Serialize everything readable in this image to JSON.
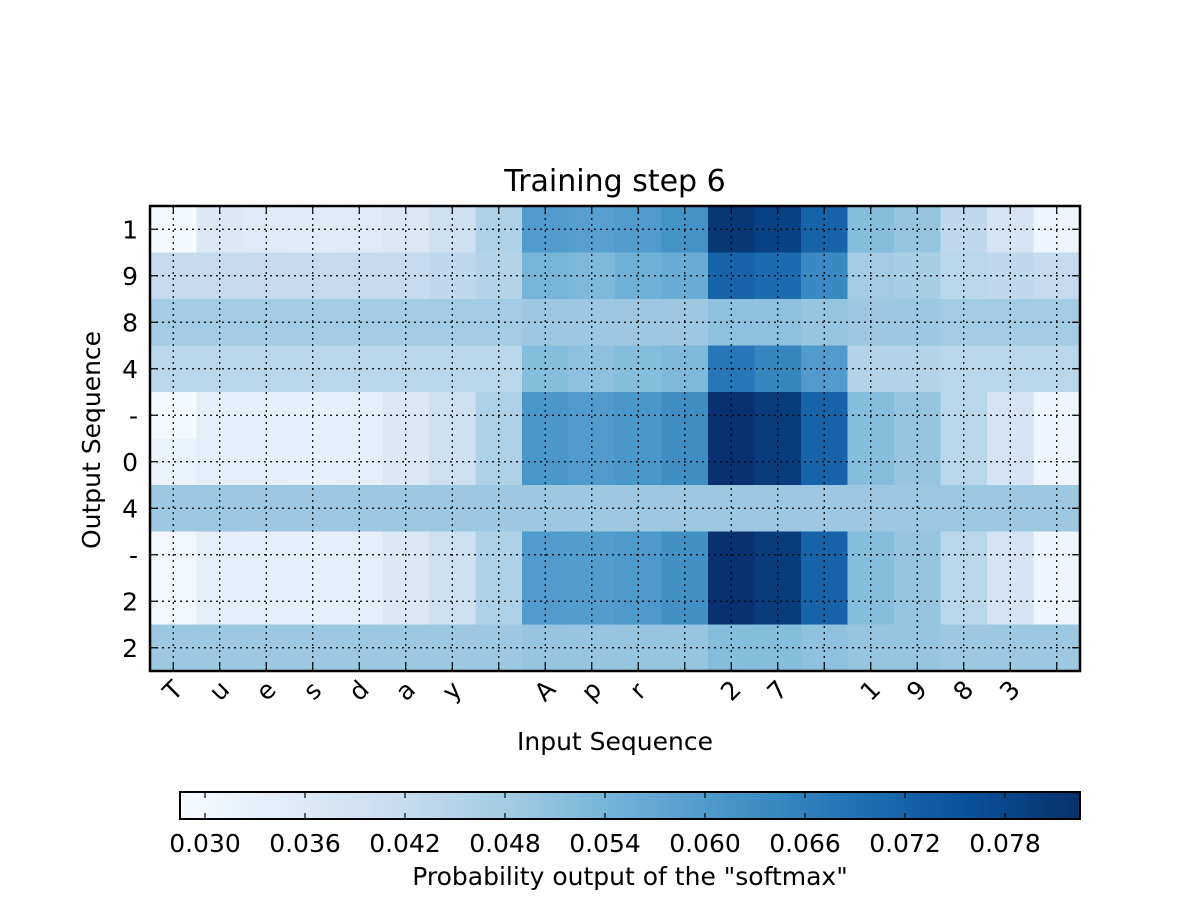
{
  "chart_data": {
    "type": "heatmap",
    "title": "Training step 6",
    "xlabel": "Input Sequence",
    "ylabel": "Output Sequence",
    "x_tick_labels": [
      "T",
      "u",
      "e",
      "s",
      "d",
      "a",
      "y",
      "",
      "A",
      "p",
      "r",
      "",
      "2",
      "7",
      "",
      "1",
      "9",
      "8",
      "3",
      ""
    ],
    "y_tick_labels": [
      "1",
      "9",
      "8",
      "4",
      "-",
      "0",
      "4",
      "-",
      "2",
      "2"
    ],
    "grid": true,
    "colormap": "Blues",
    "colorbar": {
      "label": "Probability output of the \"softmax\"",
      "tick_values": [
        0.03,
        0.036,
        0.042,
        0.048,
        0.054,
        0.06,
        0.066,
        0.072,
        0.078
      ],
      "tick_labels": [
        "0.030",
        "0.036",
        "0.042",
        "0.048",
        "0.054",
        "0.060",
        "0.066",
        "0.072",
        "0.078"
      ],
      "range": [
        0.0285,
        0.0825
      ]
    },
    "column_labels_long": [
      "T",
      "u",
      "e",
      "s",
      "d",
      "a",
      "y",
      " ",
      "A",
      "p",
      "r",
      " ",
      "2",
      "7",
      " ",
      "1",
      "9",
      "8",
      "3",
      " "
    ],
    "values": [
      [
        0.029,
        0.036,
        0.0355,
        0.035,
        0.0355,
        0.0365,
        0.04,
        0.046,
        0.06,
        0.059,
        0.06,
        0.062,
        0.081,
        0.079,
        0.072,
        0.052,
        0.05,
        0.043,
        0.038,
        0.031
      ],
      [
        0.042,
        0.042,
        0.042,
        0.042,
        0.042,
        0.042,
        0.043,
        0.045,
        0.054,
        0.053,
        0.055,
        0.056,
        0.072,
        0.07,
        0.064,
        0.048,
        0.047,
        0.044,
        0.043,
        0.042
      ],
      [
        0.048,
        0.048,
        0.048,
        0.048,
        0.048,
        0.048,
        0.048,
        0.048,
        0.049,
        0.049,
        0.049,
        0.049,
        0.051,
        0.051,
        0.05,
        0.049,
        0.049,
        0.048,
        0.048,
        0.048
      ],
      [
        0.044,
        0.044,
        0.044,
        0.044,
        0.044,
        0.044,
        0.044,
        0.044,
        0.052,
        0.051,
        0.052,
        0.053,
        0.068,
        0.065,
        0.06,
        0.045,
        0.045,
        0.044,
        0.044,
        0.044
      ],
      [
        0.029,
        0.034,
        0.0335,
        0.033,
        0.0335,
        0.036,
        0.04,
        0.046,
        0.061,
        0.06,
        0.061,
        0.063,
        0.082,
        0.08,
        0.072,
        0.052,
        0.05,
        0.044,
        0.038,
        0.031
      ],
      [
        0.032,
        0.034,
        0.0335,
        0.033,
        0.0335,
        0.036,
        0.04,
        0.046,
        0.061,
        0.06,
        0.061,
        0.063,
        0.082,
        0.08,
        0.072,
        0.052,
        0.05,
        0.044,
        0.038,
        0.031
      ],
      [
        0.049,
        0.049,
        0.049,
        0.049,
        0.049,
        0.049,
        0.049,
        0.049,
        0.049,
        0.049,
        0.049,
        0.049,
        0.049,
        0.049,
        0.049,
        0.049,
        0.049,
        0.049,
        0.049,
        0.049
      ],
      [
        0.03,
        0.034,
        0.0335,
        0.033,
        0.0335,
        0.036,
        0.04,
        0.046,
        0.06,
        0.0595,
        0.0605,
        0.0625,
        0.082,
        0.08,
        0.072,
        0.052,
        0.05,
        0.044,
        0.038,
        0.031
      ],
      [
        0.03,
        0.034,
        0.0335,
        0.033,
        0.0335,
        0.036,
        0.04,
        0.046,
        0.06,
        0.0595,
        0.0605,
        0.0625,
        0.082,
        0.08,
        0.072,
        0.052,
        0.05,
        0.044,
        0.038,
        0.031
      ],
      [
        0.049,
        0.049,
        0.049,
        0.049,
        0.049,
        0.049,
        0.049,
        0.049,
        0.05,
        0.05,
        0.05,
        0.05,
        0.052,
        0.052,
        0.051,
        0.05,
        0.05,
        0.049,
        0.049,
        0.049
      ]
    ]
  }
}
